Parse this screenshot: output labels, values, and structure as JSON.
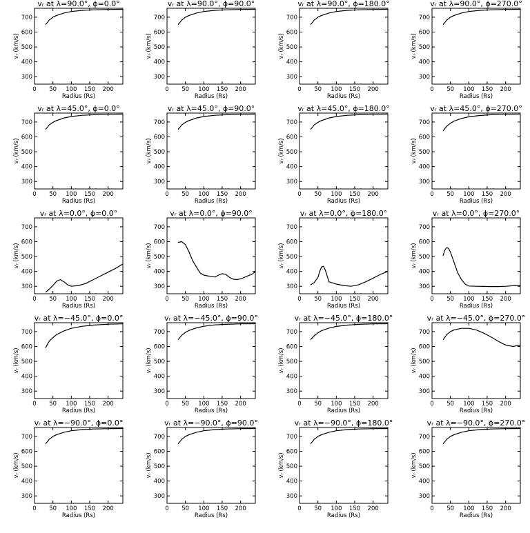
{
  "figure": {
    "background": "#ffffff",
    "line_color": "#000000"
  },
  "chart_data": [
    {
      "type": "line",
      "title": "vᵣ at λ=90.0°, ϕ=0.0°",
      "xlabel": "Radius (Rs)",
      "ylabel": "vᵣ (km/s)",
      "xlim": [
        0,
        240
      ],
      "ylim": [
        250,
        760
      ],
      "xticks": [
        0,
        50,
        100,
        150,
        200
      ],
      "yticks": [
        300,
        400,
        500,
        600,
        700
      ],
      "x": [
        30,
        40,
        50,
        60,
        80,
        100,
        130,
        160,
        200,
        240
      ],
      "y": [
        650,
        680,
        700,
        712,
        728,
        738,
        746,
        750,
        752,
        753
      ]
    },
    {
      "type": "line",
      "title": "vᵣ at λ=90.0°, ϕ=90.0°",
      "xlabel": "Radius (Rs)",
      "ylabel": "vᵣ (km/s)",
      "xlim": [
        0,
        240
      ],
      "ylim": [
        250,
        760
      ],
      "xticks": [
        0,
        50,
        100,
        150,
        200
      ],
      "yticks": [
        300,
        400,
        500,
        600,
        700
      ],
      "x": [
        30,
        40,
        50,
        60,
        80,
        100,
        130,
        160,
        200,
        240
      ],
      "y": [
        650,
        680,
        700,
        712,
        728,
        738,
        746,
        750,
        752,
        753
      ]
    },
    {
      "type": "line",
      "title": "vᵣ at λ=90.0°, ϕ=180.0°",
      "xlabel": "Radius (Rs)",
      "ylabel": "vᵣ (km/s)",
      "xlim": [
        0,
        240
      ],
      "ylim": [
        250,
        760
      ],
      "xticks": [
        0,
        50,
        100,
        150,
        200
      ],
      "yticks": [
        300,
        400,
        500,
        600,
        700
      ],
      "x": [
        30,
        40,
        50,
        60,
        80,
        100,
        130,
        160,
        200,
        240
      ],
      "y": [
        650,
        680,
        700,
        712,
        728,
        738,
        746,
        750,
        752,
        753
      ]
    },
    {
      "type": "line",
      "title": "vᵣ at λ=90.0°, ϕ=270.0°",
      "xlabel": "Radius (Rs)",
      "ylabel": "vᵣ (km/s)",
      "xlim": [
        0,
        240
      ],
      "ylim": [
        250,
        760
      ],
      "xticks": [
        0,
        50,
        100,
        150,
        200
      ],
      "yticks": [
        300,
        400,
        500,
        600,
        700
      ],
      "x": [
        30,
        40,
        50,
        60,
        80,
        100,
        130,
        160,
        200,
        240
      ],
      "y": [
        650,
        680,
        700,
        712,
        728,
        738,
        746,
        750,
        752,
        753
      ]
    },
    {
      "type": "line",
      "title": "vᵣ at λ=45.0°, ϕ=0.0°",
      "xlabel": "Radius (Rs)",
      "ylabel": "vᵣ (km/s)",
      "xlim": [
        0,
        240
      ],
      "ylim": [
        250,
        760
      ],
      "xticks": [
        0,
        50,
        100,
        150,
        200
      ],
      "yticks": [
        300,
        400,
        500,
        600,
        700
      ],
      "x": [
        30,
        40,
        50,
        60,
        80,
        100,
        130,
        160,
        200,
        240
      ],
      "y": [
        650,
        680,
        698,
        710,
        727,
        737,
        745,
        749,
        752,
        753
      ]
    },
    {
      "type": "line",
      "title": "vᵣ at λ=45.0°, ϕ=90.0°",
      "xlabel": "Radius (Rs)",
      "ylabel": "vᵣ (km/s)",
      "xlim": [
        0,
        240
      ],
      "ylim": [
        250,
        760
      ],
      "xticks": [
        0,
        50,
        100,
        150,
        200
      ],
      "yticks": [
        300,
        400,
        500,
        600,
        700
      ],
      "x": [
        30,
        40,
        50,
        60,
        80,
        100,
        130,
        160,
        200,
        240
      ],
      "y": [
        650,
        680,
        698,
        710,
        727,
        737,
        745,
        749,
        752,
        753
      ]
    },
    {
      "type": "line",
      "title": "vᵣ at λ=45.0°, ϕ=180.0°",
      "xlabel": "Radius (Rs)",
      "ylabel": "vᵣ (km/s)",
      "xlim": [
        0,
        240
      ],
      "ylim": [
        250,
        760
      ],
      "xticks": [
        0,
        50,
        100,
        150,
        200
      ],
      "yticks": [
        300,
        400,
        500,
        600,
        700
      ],
      "x": [
        30,
        40,
        50,
        60,
        80,
        100,
        130,
        160,
        200,
        240
      ],
      "y": [
        650,
        680,
        698,
        710,
        727,
        737,
        745,
        749,
        752,
        753
      ]
    },
    {
      "type": "line",
      "title": "vᵣ at λ=45.0°, ϕ=270.0°",
      "xlabel": "Radius (Rs)",
      "ylabel": "vᵣ (km/s)",
      "xlim": [
        0,
        240
      ],
      "ylim": [
        250,
        760
      ],
      "xticks": [
        0,
        50,
        100,
        150,
        200
      ],
      "yticks": [
        300,
        400,
        500,
        600,
        700
      ],
      "x": [
        30,
        40,
        50,
        60,
        80,
        100,
        130,
        160,
        200,
        240
      ],
      "y": [
        640,
        672,
        692,
        706,
        724,
        735,
        744,
        749,
        752,
        753
      ]
    },
    {
      "type": "line",
      "title": "vᵣ at λ=0.0°, ϕ=0.0°",
      "xlabel": "Radius (Rs)",
      "ylabel": "vᵣ (km/s)",
      "xlim": [
        0,
        240
      ],
      "ylim": [
        250,
        760
      ],
      "xticks": [
        0,
        50,
        100,
        150,
        200
      ],
      "yticks": [
        300,
        400,
        500,
        600,
        700
      ],
      "x": [
        30,
        40,
        50,
        60,
        70,
        80,
        90,
        100,
        120,
        140,
        160,
        180,
        200,
        220,
        240
      ],
      "y": [
        260,
        280,
        305,
        335,
        345,
        330,
        310,
        300,
        305,
        320,
        345,
        370,
        395,
        420,
        450
      ]
    },
    {
      "type": "line",
      "title": "vᵣ at λ=0.0°, ϕ=90.0°",
      "xlabel": "Radius (Rs)",
      "ylabel": "vᵣ (km/s)",
      "xlim": [
        0,
        240
      ],
      "ylim": [
        250,
        760
      ],
      "xticks": [
        0,
        50,
        100,
        150,
        200
      ],
      "yticks": [
        300,
        400,
        500,
        600,
        700
      ],
      "x": [
        30,
        40,
        50,
        60,
        70,
        80,
        90,
        100,
        110,
        120,
        130,
        140,
        150,
        160,
        170,
        180,
        190,
        200,
        210,
        220,
        230,
        240
      ],
      "y": [
        595,
        600,
        580,
        530,
        470,
        430,
        390,
        375,
        370,
        367,
        362,
        375,
        385,
        380,
        360,
        348,
        345,
        350,
        360,
        370,
        380,
        398
      ]
    },
    {
      "type": "line",
      "title": "vᵣ at λ=0.0°, ϕ=180.0°",
      "xlabel": "Radius (Rs)",
      "ylabel": "vᵣ (km/s)",
      "xlim": [
        0,
        240
      ],
      "ylim": [
        250,
        760
      ],
      "xticks": [
        0,
        50,
        100,
        150,
        200
      ],
      "yticks": [
        300,
        400,
        500,
        600,
        700
      ],
      "x": [
        30,
        40,
        50,
        55,
        60,
        65,
        70,
        80,
        100,
        120,
        140,
        160,
        180,
        200,
        220,
        240
      ],
      "y": [
        310,
        325,
        360,
        400,
        430,
        435,
        410,
        330,
        315,
        305,
        300,
        310,
        330,
        355,
        380,
        400
      ]
    },
    {
      "type": "line",
      "title": "vᵣ at λ=0.0°, ϕ=270.0°",
      "xlabel": "Radius (Rs)",
      "ylabel": "vᵣ (km/s)",
      "xlim": [
        0,
        240
      ],
      "ylim": [
        250,
        760
      ],
      "xticks": [
        0,
        50,
        100,
        150,
        200
      ],
      "yticks": [
        300,
        400,
        500,
        600,
        700
      ],
      "x": [
        30,
        35,
        40,
        45,
        50,
        60,
        70,
        80,
        90,
        100,
        120,
        140,
        160,
        180,
        200,
        220,
        240
      ],
      "y": [
        505,
        545,
        560,
        555,
        530,
        460,
        390,
        345,
        315,
        302,
        300,
        299,
        298,
        298,
        300,
        304,
        305
      ]
    },
    {
      "type": "line",
      "title": "vᵣ at λ=−45.0°, ϕ=0.0°",
      "xlabel": "Radius (Rs)",
      "ylabel": "vᵣ (km/s)",
      "xlim": [
        0,
        240
      ],
      "ylim": [
        250,
        760
      ],
      "xticks": [
        0,
        50,
        100,
        150,
        200
      ],
      "yticks": [
        300,
        400,
        500,
        600,
        700
      ],
      "x": [
        30,
        35,
        40,
        50,
        60,
        80,
        100,
        130,
        160,
        200,
        240
      ],
      "y": [
        590,
        615,
        635,
        660,
        680,
        705,
        722,
        736,
        744,
        750,
        752
      ]
    },
    {
      "type": "line",
      "title": "vᵣ at λ=−45.0°, ϕ=90.0°",
      "xlabel": "Radius (Rs)",
      "ylabel": "vᵣ (km/s)",
      "xlim": [
        0,
        240
      ],
      "ylim": [
        250,
        760
      ],
      "xticks": [
        0,
        50,
        100,
        150,
        200
      ],
      "yticks": [
        300,
        400,
        500,
        600,
        700
      ],
      "x": [
        30,
        40,
        50,
        60,
        80,
        100,
        130,
        160,
        200,
        240
      ],
      "y": [
        645,
        675,
        695,
        708,
        725,
        736,
        745,
        749,
        752,
        753
      ]
    },
    {
      "type": "line",
      "title": "vᵣ at λ=−45.0°, ϕ=180.0°",
      "xlabel": "Radius (Rs)",
      "ylabel": "vᵣ (km/s)",
      "xlim": [
        0,
        240
      ],
      "ylim": [
        250,
        760
      ],
      "xticks": [
        0,
        50,
        100,
        150,
        200
      ],
      "yticks": [
        300,
        400,
        500,
        600,
        700
      ],
      "x": [
        30,
        40,
        50,
        60,
        80,
        100,
        130,
        160,
        200,
        240
      ],
      "y": [
        645,
        672,
        692,
        706,
        724,
        735,
        744,
        749,
        752,
        753
      ]
    },
    {
      "type": "line",
      "title": "vᵣ at λ=−45.0°, ϕ=270.0°",
      "xlabel": "Radius (Rs)",
      "ylabel": "vᵣ (km/s)",
      "xlim": [
        0,
        240
      ],
      "ylim": [
        250,
        760
      ],
      "xticks": [
        0,
        50,
        100,
        150,
        200
      ],
      "yticks": [
        300,
        400,
        500,
        600,
        700
      ],
      "x": [
        30,
        40,
        50,
        60,
        80,
        100,
        120,
        140,
        160,
        180,
        200,
        220,
        240
      ],
      "y": [
        645,
        680,
        700,
        712,
        722,
        722,
        712,
        690,
        665,
        635,
        610,
        600,
        610
      ]
    },
    {
      "type": "line",
      "title": "vᵣ at λ=−90.0°, ϕ=0.0°",
      "xlabel": "Radius (Rs)",
      "ylabel": "vᵣ (km/s)",
      "xlim": [
        0,
        240
      ],
      "ylim": [
        250,
        760
      ],
      "xticks": [
        0,
        50,
        100,
        150,
        200
      ],
      "yticks": [
        300,
        400,
        500,
        600,
        700
      ],
      "x": [
        30,
        40,
        50,
        60,
        80,
        100,
        130,
        160,
        200,
        240
      ],
      "y": [
        650,
        680,
        700,
        712,
        728,
        738,
        746,
        750,
        752,
        753
      ]
    },
    {
      "type": "line",
      "title": "vᵣ at λ=−90.0°, ϕ=90.0°",
      "xlabel": "Radius (Rs)",
      "ylabel": "vᵣ (km/s)",
      "xlim": [
        0,
        240
      ],
      "ylim": [
        250,
        760
      ],
      "xticks": [
        0,
        50,
        100,
        150,
        200
      ],
      "yticks": [
        300,
        400,
        500,
        600,
        700
      ],
      "x": [
        30,
        40,
        50,
        60,
        80,
        100,
        130,
        160,
        200,
        240
      ],
      "y": [
        650,
        680,
        700,
        712,
        728,
        738,
        746,
        750,
        752,
        753
      ]
    },
    {
      "type": "line",
      "title": "vᵣ at λ=−90.0°, ϕ=180.0°",
      "xlabel": "Radius (Rs)",
      "ylabel": "vᵣ (km/s)",
      "xlim": [
        0,
        240
      ],
      "ylim": [
        250,
        760
      ],
      "xticks": [
        0,
        50,
        100,
        150,
        200
      ],
      "yticks": [
        300,
        400,
        500,
        600,
        700
      ],
      "x": [
        30,
        40,
        50,
        60,
        80,
        100,
        130,
        160,
        200,
        240
      ],
      "y": [
        650,
        680,
        700,
        712,
        728,
        738,
        746,
        750,
        752,
        753
      ]
    },
    {
      "type": "line",
      "title": "vᵣ at λ=−90.0°, ϕ=270.0°",
      "xlabel": "Radius (Rs)",
      "ylabel": "vᵣ (km/s)",
      "xlim": [
        0,
        240
      ],
      "ylim": [
        250,
        760
      ],
      "xticks": [
        0,
        50,
        100,
        150,
        200
      ],
      "yticks": [
        300,
        400,
        500,
        600,
        700
      ],
      "x": [
        30,
        40,
        50,
        60,
        80,
        100,
        130,
        160,
        200,
        240
      ],
      "y": [
        650,
        680,
        700,
        712,
        728,
        738,
        746,
        750,
        752,
        753
      ]
    }
  ]
}
